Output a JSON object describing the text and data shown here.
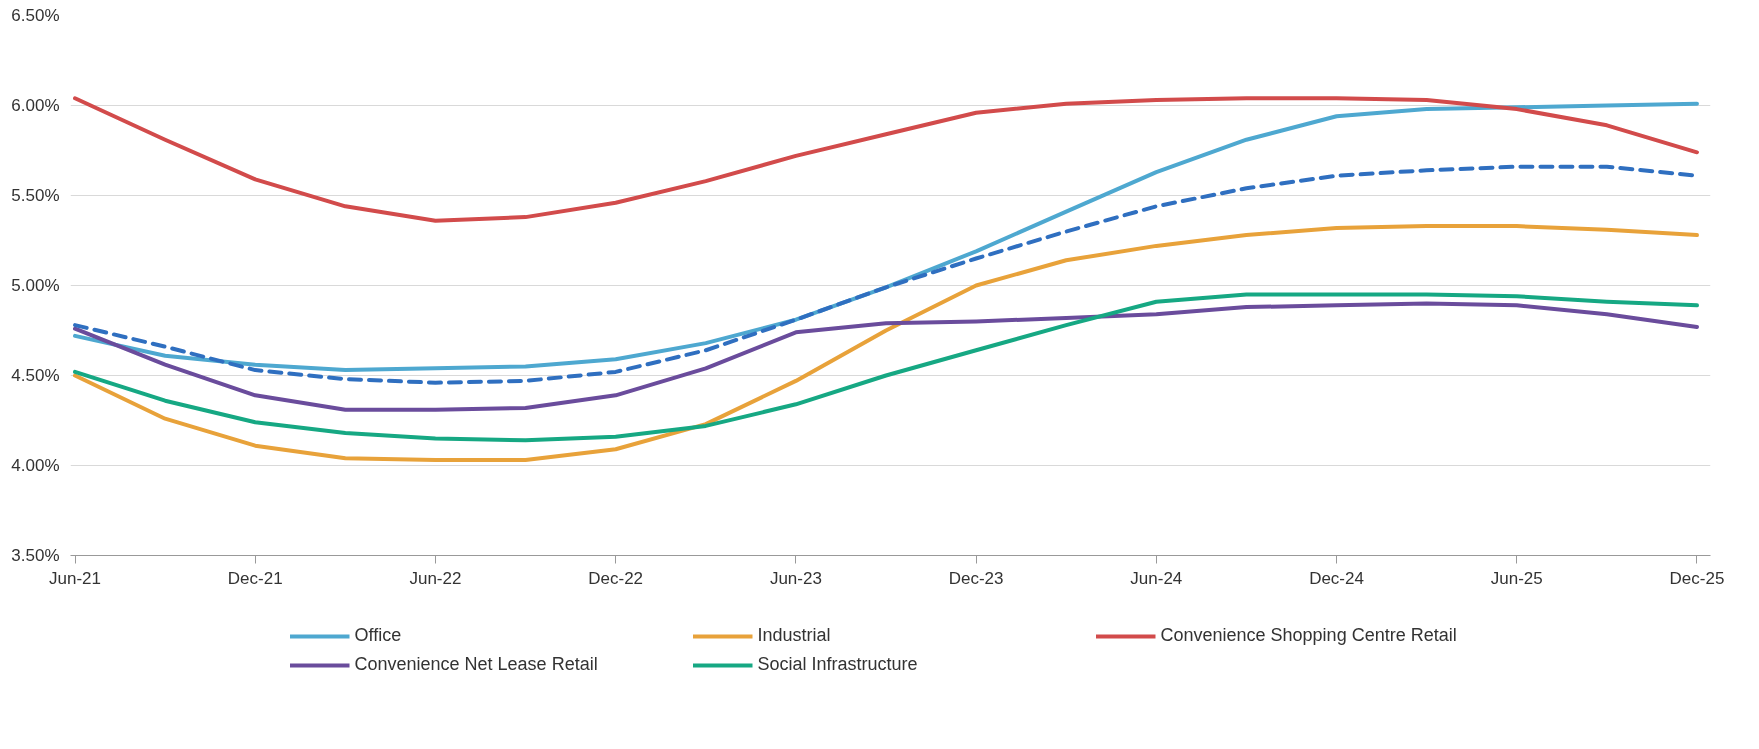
{
  "chart_data": {
    "type": "line",
    "categories": [
      "Jun-21",
      null,
      "Dec-21",
      null,
      "Jun-22",
      null,
      "Dec-22",
      null,
      "Jun-23",
      null,
      "Dec-23",
      null,
      "Jun-24",
      null,
      "Dec-24",
      null,
      "Jun-25",
      null,
      "Dec-25"
    ],
    "ylim": [
      3.5,
      6.5
    ],
    "yticks": [
      {
        "value": 3.5,
        "label": "3.50%"
      },
      {
        "value": 4.0,
        "label": "4.00%"
      },
      {
        "value": 4.5,
        "label": "4.50%"
      },
      {
        "value": 5.0,
        "label": "5.00%"
      },
      {
        "value": 5.5,
        "label": "5.50%"
      },
      {
        "value": 6.0,
        "label": "6.00%"
      },
      {
        "value": 6.5,
        "label": "6.50%"
      }
    ],
    "grid": "y",
    "legend": "bottom",
    "marker": "none",
    "series": [
      {
        "name": "Office",
        "color": "#4ea8d0",
        "values": [
          4.72,
          4.61,
          4.56,
          4.53,
          4.54,
          4.55,
          4.59,
          4.68,
          4.81,
          4.99,
          5.19,
          5.41,
          5.63,
          5.81,
          5.94,
          5.98,
          5.99,
          6.0,
          6.01
        ]
      },
      {
        "name": "Industrial",
        "color": "#e8a23a",
        "values": [
          4.5,
          4.26,
          4.11,
          4.04,
          4.03,
          4.03,
          4.09,
          4.23,
          4.47,
          4.75,
          5.0,
          5.14,
          5.22,
          5.28,
          5.32,
          5.33,
          5.33,
          5.31,
          5.28
        ]
      },
      {
        "name": "Convenience Shopping Centre Retail",
        "color": "#d24b4b",
        "values": [
          6.04,
          5.81,
          5.59,
          5.44,
          5.36,
          5.38,
          5.46,
          5.58,
          5.72,
          5.84,
          5.96,
          6.01,
          6.03,
          6.04,
          6.04,
          6.03,
          5.98,
          5.89,
          5.74
        ]
      },
      {
        "name": "Convenience Net Lease Retail",
        "color": "#6a4c9c",
        "values": [
          4.76,
          4.56,
          4.39,
          4.31,
          4.31,
          4.32,
          4.39,
          4.54,
          4.74,
          4.79,
          4.8,
          4.82,
          4.84,
          4.88,
          4.89,
          4.9,
          4.89,
          4.84,
          4.77
        ]
      },
      {
        "name": "Social Infrastructure",
        "color": "#16a883",
        "values": [
          4.52,
          4.36,
          4.24,
          4.18,
          4.15,
          4.14,
          4.16,
          4.22,
          4.34,
          4.5,
          4.64,
          4.78,
          4.91,
          4.95,
          4.95,
          4.95,
          4.94,
          4.91,
          4.89
        ]
      },
      {
        "color": "#2f6fc0",
        "line_style": "dashed",
        "values": [
          4.78,
          4.66,
          4.53,
          4.48,
          4.46,
          4.47,
          4.52,
          4.64,
          4.81,
          4.99,
          5.15,
          5.3,
          5.44,
          5.54,
          5.61,
          5.64,
          5.66,
          5.66,
          5.61
        ]
      }
    ]
  }
}
